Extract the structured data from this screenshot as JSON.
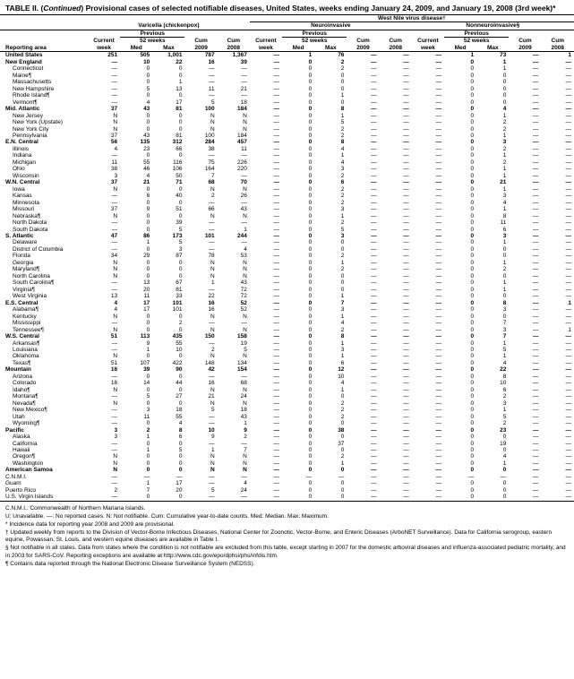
{
  "title_prefix": "TABLE II. (",
  "title_emph": "Continued",
  "title_rest": ") Provisional cases of selected notifiable diseases, United States, weeks ending January 24, 2009, and January 19, 2008 (3rd week)*",
  "super_header": "West Nile virus disease†",
  "diseases": {
    "a": "Varicella (chickenpox)",
    "b": "Neuroinvasive",
    "c": "Nonneuroinvasive§"
  },
  "subheaders": {
    "reporting": "Reporting area",
    "current": "Current",
    "week": "week",
    "previous": "Previous",
    "weeks52": "52 weeks",
    "med": "Med",
    "max": "Max",
    "cum": "Cum",
    "y2009": "2009",
    "y2008": "2008"
  },
  "dash": "—",
  "rows": [
    {
      "l": "United States",
      "b": 1,
      "v": [
        "251",
        "505",
        "1,001",
        "787",
        "1,367",
        "—",
        "1",
        "76",
        "—",
        "—",
        "—",
        "1",
        "73",
        "—",
        "1"
      ]
    },
    {
      "l": "New England",
      "b": 1,
      "v": [
        "—",
        "10",
        "22",
        "16",
        "39",
        "—",
        "0",
        "2",
        "—",
        "—",
        "—",
        "0",
        "1",
        "—",
        "—"
      ]
    },
    {
      "l": "Connecticut",
      "i": 1,
      "v": [
        "—",
        "0",
        "0",
        "—",
        "—",
        "—",
        "0",
        "2",
        "—",
        "—",
        "—",
        "0",
        "1",
        "—",
        "—"
      ]
    },
    {
      "l": "Maine¶",
      "i": 1,
      "v": [
        "—",
        "0",
        "0",
        "—",
        "—",
        "—",
        "0",
        "0",
        "—",
        "—",
        "—",
        "0",
        "0",
        "—",
        "—"
      ]
    },
    {
      "l": "Massachusetts",
      "i": 1,
      "v": [
        "—",
        "0",
        "1",
        "—",
        "—",
        "—",
        "0",
        "0",
        "—",
        "—",
        "—",
        "0",
        "0",
        "—",
        "—"
      ]
    },
    {
      "l": "New Hampshire",
      "i": 1,
      "v": [
        "—",
        "5",
        "13",
        "11",
        "21",
        "—",
        "0",
        "0",
        "—",
        "—",
        "—",
        "0",
        "0",
        "—",
        "—"
      ]
    },
    {
      "l": "Rhode Island¶",
      "i": 1,
      "v": [
        "—",
        "0",
        "0",
        "—",
        "—",
        "—",
        "0",
        "1",
        "—",
        "—",
        "—",
        "0",
        "0",
        "—",
        "—"
      ]
    },
    {
      "l": "Vermont¶",
      "i": 1,
      "v": [
        "—",
        "4",
        "17",
        "5",
        "18",
        "—",
        "0",
        "0",
        "—",
        "—",
        "—",
        "0",
        "0",
        "—",
        "—"
      ]
    },
    {
      "l": "Mid. Atlantic",
      "b": 1,
      "v": [
        "37",
        "43",
        "81",
        "100",
        "184",
        "—",
        "0",
        "8",
        "—",
        "—",
        "—",
        "0",
        "4",
        "—",
        "—"
      ]
    },
    {
      "l": "New Jersey",
      "i": 1,
      "v": [
        "N",
        "0",
        "0",
        "N",
        "N",
        "—",
        "0",
        "1",
        "—",
        "—",
        "—",
        "0",
        "1",
        "—",
        "—"
      ]
    },
    {
      "l": "New York (Upstate)",
      "i": 1,
      "v": [
        "N",
        "0",
        "0",
        "N",
        "N",
        "—",
        "0",
        "5",
        "—",
        "—",
        "—",
        "0",
        "2",
        "—",
        "—"
      ]
    },
    {
      "l": "New York City",
      "i": 1,
      "v": [
        "N",
        "0",
        "0",
        "N",
        "N",
        "—",
        "0",
        "2",
        "—",
        "—",
        "—",
        "0",
        "2",
        "—",
        "—"
      ]
    },
    {
      "l": "Pennsylvania",
      "i": 1,
      "v": [
        "37",
        "43",
        "81",
        "100",
        "184",
        "—",
        "0",
        "2",
        "—",
        "—",
        "—",
        "0",
        "1",
        "—",
        "—"
      ]
    },
    {
      "l": "E.N. Central",
      "b": 1,
      "v": [
        "56",
        "135",
        "312",
        "284",
        "457",
        "—",
        "0",
        "8",
        "—",
        "—",
        "—",
        "0",
        "3",
        "—",
        "—"
      ]
    },
    {
      "l": "Illinois",
      "i": 1,
      "v": [
        "4",
        "23",
        "66",
        "38",
        "11",
        "—",
        "0",
        "4",
        "—",
        "—",
        "—",
        "0",
        "2",
        "—",
        "—"
      ]
    },
    {
      "l": "Indiana",
      "i": 1,
      "v": [
        "—",
        "0",
        "0",
        "—",
        "—",
        "—",
        "0",
        "1",
        "—",
        "—",
        "—",
        "0",
        "1",
        "—",
        "—"
      ]
    },
    {
      "l": "Michigan",
      "i": 1,
      "v": [
        "11",
        "55",
        "116",
        "75",
        "226",
        "—",
        "0",
        "4",
        "—",
        "—",
        "—",
        "0",
        "2",
        "—",
        "—"
      ]
    },
    {
      "l": "Ohio",
      "i": 1,
      "v": [
        "38",
        "46",
        "106",
        "164",
        "220",
        "—",
        "0",
        "3",
        "—",
        "—",
        "—",
        "0",
        "1",
        "—",
        "—"
      ]
    },
    {
      "l": "Wisconsin",
      "i": 1,
      "v": [
        "3",
        "4",
        "50",
        "7",
        "—",
        "—",
        "0",
        "2",
        "—",
        "—",
        "—",
        "0",
        "1",
        "—",
        "—"
      ]
    },
    {
      "l": "W.N. Central",
      "b": 1,
      "v": [
        "37",
        "21",
        "71",
        "68",
        "70",
        "—",
        "0",
        "6",
        "—",
        "—",
        "—",
        "0",
        "21",
        "—",
        "—"
      ]
    },
    {
      "l": "Iowa",
      "i": 1,
      "v": [
        "N",
        "0",
        "0",
        "N",
        "N",
        "—",
        "0",
        "2",
        "—",
        "—",
        "—",
        "0",
        "1",
        "—",
        "—"
      ]
    },
    {
      "l": "Kansas",
      "i": 1,
      "v": [
        "—",
        "6",
        "40",
        "2",
        "26",
        "—",
        "0",
        "2",
        "—",
        "—",
        "—",
        "0",
        "3",
        "—",
        "—"
      ]
    },
    {
      "l": "Minnesota",
      "i": 1,
      "v": [
        "—",
        "0",
        "0",
        "—",
        "—",
        "—",
        "0",
        "2",
        "—",
        "—",
        "—",
        "0",
        "4",
        "—",
        "—"
      ]
    },
    {
      "l": "Missouri",
      "i": 1,
      "v": [
        "37",
        "9",
        "51",
        "66",
        "43",
        "—",
        "0",
        "3",
        "—",
        "—",
        "—",
        "0",
        "1",
        "—",
        "—"
      ]
    },
    {
      "l": "Nebraska¶",
      "i": 1,
      "v": [
        "N",
        "0",
        "0",
        "N",
        "N",
        "—",
        "0",
        "1",
        "—",
        "—",
        "—",
        "0",
        "8",
        "—",
        "—"
      ]
    },
    {
      "l": "North Dakota",
      "i": 1,
      "v": [
        "—",
        "0",
        "39",
        "—",
        "—",
        "—",
        "0",
        "2",
        "—",
        "—",
        "—",
        "0",
        "11",
        "—",
        "—"
      ]
    },
    {
      "l": "South Dakota",
      "i": 1,
      "v": [
        "—",
        "0",
        "5",
        "—",
        "1",
        "—",
        "0",
        "5",
        "—",
        "—",
        "—",
        "0",
        "6",
        "—",
        "—"
      ]
    },
    {
      "l": "S. Atlantic",
      "b": 1,
      "v": [
        "47",
        "86",
        "173",
        "101",
        "244",
        "—",
        "0",
        "3",
        "—",
        "—",
        "—",
        "0",
        "3",
        "—",
        "—"
      ]
    },
    {
      "l": "Delaware",
      "i": 1,
      "v": [
        "—",
        "1",
        "5",
        "—",
        "—",
        "—",
        "0",
        "0",
        "—",
        "—",
        "—",
        "0",
        "1",
        "—",
        "—"
      ]
    },
    {
      "l": "District of Columbia",
      "i": 1,
      "v": [
        "—",
        "0",
        "3",
        "—",
        "4",
        "—",
        "0",
        "0",
        "—",
        "—",
        "—",
        "0",
        "0",
        "—",
        "—"
      ]
    },
    {
      "l": "Florida",
      "i": 1,
      "v": [
        "34",
        "29",
        "87",
        "78",
        "53",
        "—",
        "0",
        "2",
        "—",
        "—",
        "—",
        "0",
        "0",
        "—",
        "—"
      ]
    },
    {
      "l": "Georgia",
      "i": 1,
      "v": [
        "N",
        "0",
        "0",
        "N",
        "N",
        "—",
        "0",
        "1",
        "—",
        "—",
        "—",
        "0",
        "1",
        "—",
        "—"
      ]
    },
    {
      "l": "Maryland¶",
      "i": 1,
      "v": [
        "N",
        "0",
        "0",
        "N",
        "N",
        "—",
        "0",
        "2",
        "—",
        "—",
        "—",
        "0",
        "2",
        "—",
        "—"
      ]
    },
    {
      "l": "North Carolina",
      "i": 1,
      "v": [
        "N",
        "0",
        "0",
        "N",
        "N",
        "—",
        "0",
        "0",
        "—",
        "—",
        "—",
        "0",
        "0",
        "—",
        "—"
      ]
    },
    {
      "l": "South Carolina¶",
      "i": 1,
      "v": [
        "—",
        "13",
        "67",
        "1",
        "43",
        "—",
        "0",
        "0",
        "—",
        "—",
        "—",
        "0",
        "1",
        "—",
        "—"
      ]
    },
    {
      "l": "Virginia¶",
      "i": 1,
      "v": [
        "—",
        "20",
        "81",
        "—",
        "72",
        "—",
        "0",
        "0",
        "—",
        "—",
        "—",
        "0",
        "1",
        "—",
        "—"
      ]
    },
    {
      "l": "West Virginia",
      "i": 1,
      "v": [
        "13",
        "11",
        "33",
        "22",
        "72",
        "—",
        "0",
        "1",
        "—",
        "—",
        "—",
        "0",
        "0",
        "—",
        "—"
      ]
    },
    {
      "l": "E.S. Central",
      "b": 1,
      "v": [
        "4",
        "17",
        "101",
        "16",
        "52",
        "—",
        "0",
        "7",
        "—",
        "—",
        "—",
        "0",
        "8",
        "—",
        "1"
      ]
    },
    {
      "l": "Alabama¶",
      "i": 1,
      "v": [
        "4",
        "17",
        "101",
        "16",
        "52",
        "—",
        "0",
        "3",
        "—",
        "—",
        "—",
        "0",
        "3",
        "—",
        "—"
      ]
    },
    {
      "l": "Kentucky",
      "i": 1,
      "v": [
        "N",
        "0",
        "0",
        "N",
        "N",
        "—",
        "0",
        "1",
        "—",
        "—",
        "—",
        "0",
        "0",
        "—",
        "—"
      ]
    },
    {
      "l": "Mississippi",
      "i": 1,
      "v": [
        "—",
        "0",
        "2",
        "—",
        "—",
        "—",
        "0",
        "4",
        "—",
        "—",
        "—",
        "0",
        "7",
        "—",
        "—"
      ]
    },
    {
      "l": "Tennessee¶",
      "i": 1,
      "v": [
        "N",
        "0",
        "0",
        "N",
        "N",
        "—",
        "0",
        "2",
        "—",
        "—",
        "—",
        "0",
        "3",
        "—",
        "1"
      ]
    },
    {
      "l": "W.S. Central",
      "b": 1,
      "v": [
        "51",
        "113",
        "435",
        "150",
        "158",
        "—",
        "0",
        "8",
        "—",
        "—",
        "—",
        "0",
        "7",
        "—",
        "—"
      ]
    },
    {
      "l": "Arkansas¶",
      "i": 1,
      "v": [
        "—",
        "9",
        "55",
        "—",
        "19",
        "—",
        "0",
        "1",
        "—",
        "—",
        "—",
        "0",
        "1",
        "—",
        "—"
      ]
    },
    {
      "l": "Louisiana",
      "i": 1,
      "v": [
        "—",
        "1",
        "10",
        "2",
        "5",
        "—",
        "0",
        "3",
        "—",
        "—",
        "—",
        "0",
        "5",
        "—",
        "—"
      ]
    },
    {
      "l": "Oklahoma",
      "i": 1,
      "v": [
        "N",
        "0",
        "0",
        "N",
        "N",
        "—",
        "0",
        "1",
        "—",
        "—",
        "—",
        "0",
        "1",
        "—",
        "—"
      ]
    },
    {
      "l": "Texas¶",
      "i": 1,
      "v": [
        "51",
        "107",
        "422",
        "148",
        "134",
        "—",
        "0",
        "6",
        "—",
        "—",
        "—",
        "0",
        "4",
        "—",
        "—"
      ]
    },
    {
      "l": "Mountain",
      "b": 1,
      "v": [
        "16",
        "39",
        "90",
        "42",
        "154",
        "—",
        "0",
        "12",
        "—",
        "—",
        "—",
        "0",
        "22",
        "—",
        "—"
      ]
    },
    {
      "l": "Arizona",
      "i": 1,
      "v": [
        "—",
        "0",
        "0",
        "—",
        "—",
        "—",
        "0",
        "10",
        "—",
        "—",
        "—",
        "0",
        "8",
        "—",
        "—"
      ]
    },
    {
      "l": "Colorado",
      "i": 1,
      "v": [
        "16",
        "14",
        "44",
        "16",
        "68",
        "—",
        "0",
        "4",
        "—",
        "—",
        "—",
        "0",
        "10",
        "—",
        "—"
      ]
    },
    {
      "l": "Idaho¶",
      "i": 1,
      "v": [
        "N",
        "0",
        "0",
        "N",
        "N",
        "—",
        "0",
        "1",
        "—",
        "—",
        "—",
        "0",
        "6",
        "—",
        "—"
      ]
    },
    {
      "l": "Montana¶",
      "i": 1,
      "v": [
        "—",
        "5",
        "27",
        "21",
        "24",
        "—",
        "0",
        "0",
        "—",
        "—",
        "—",
        "0",
        "2",
        "—",
        "—"
      ]
    },
    {
      "l": "Nevada¶",
      "i": 1,
      "v": [
        "N",
        "0",
        "0",
        "N",
        "N",
        "—",
        "0",
        "2",
        "—",
        "—",
        "—",
        "0",
        "3",
        "—",
        "—"
      ]
    },
    {
      "l": "New Mexico¶",
      "i": 1,
      "v": [
        "—",
        "3",
        "18",
        "5",
        "18",
        "—",
        "0",
        "2",
        "—",
        "—",
        "—",
        "0",
        "1",
        "—",
        "—"
      ]
    },
    {
      "l": "Utah",
      "i": 1,
      "v": [
        "—",
        "11",
        "55",
        "—",
        "43",
        "—",
        "0",
        "2",
        "—",
        "—",
        "—",
        "0",
        "5",
        "—",
        "—"
      ]
    },
    {
      "l": "Wyoming¶",
      "i": 1,
      "v": [
        "—",
        "0",
        "4",
        "—",
        "1",
        "—",
        "0",
        "0",
        "—",
        "—",
        "—",
        "0",
        "2",
        "—",
        "—"
      ]
    },
    {
      "l": "Pacific",
      "b": 1,
      "v": [
        "3",
        "2",
        "8",
        "10",
        "9",
        "—",
        "0",
        "38",
        "—",
        "—",
        "—",
        "0",
        "23",
        "—",
        "—"
      ]
    },
    {
      "l": "Alaska",
      "i": 1,
      "v": [
        "3",
        "1",
        "6",
        "9",
        "2",
        "—",
        "0",
        "0",
        "—",
        "—",
        "—",
        "0",
        "0",
        "—",
        "—"
      ]
    },
    {
      "l": "California",
      "i": 1,
      "v": [
        "—",
        "0",
        "0",
        "—",
        "—",
        "—",
        "0",
        "37",
        "—",
        "—",
        "—",
        "0",
        "19",
        "—",
        "—"
      ]
    },
    {
      "l": "Hawaii",
      "i": 1,
      "v": [
        "—",
        "1",
        "5",
        "1",
        "7",
        "—",
        "0",
        "0",
        "—",
        "—",
        "—",
        "0",
        "0",
        "—",
        "—"
      ]
    },
    {
      "l": "Oregon¶",
      "i": 1,
      "v": [
        "N",
        "0",
        "0",
        "N",
        "N",
        "—",
        "0",
        "2",
        "—",
        "—",
        "—",
        "0",
        "4",
        "—",
        "—"
      ]
    },
    {
      "l": "Washington",
      "i": 1,
      "v": [
        "N",
        "0",
        "0",
        "N",
        "N",
        "—",
        "0",
        "1",
        "—",
        "—",
        "—",
        "0",
        "1",
        "—",
        "—"
      ]
    },
    {
      "l": "American Samoa",
      "b": 1,
      "v": [
        "N",
        "0",
        "0",
        "N",
        "N",
        "—",
        "0",
        "0",
        "—",
        "—",
        "—",
        "0",
        "0",
        "—",
        "—"
      ]
    },
    {
      "l": "C.N.M.I.",
      "i": 0,
      "v": [
        "—",
        "—",
        "—",
        "—",
        "—",
        "—",
        "—",
        "—",
        "—",
        "—",
        "—",
        "—",
        "—",
        "—",
        "—"
      ]
    },
    {
      "l": "Guam",
      "i": 0,
      "v": [
        "—",
        "1",
        "17",
        "—",
        "4",
        "—",
        "0",
        "0",
        "—",
        "—",
        "—",
        "0",
        "0",
        "—",
        "—"
      ]
    },
    {
      "l": "Puerto Rico",
      "i": 0,
      "v": [
        "2",
        "7",
        "20",
        "5",
        "24",
        "—",
        "0",
        "0",
        "—",
        "—",
        "—",
        "0",
        "0",
        "—",
        "—"
      ]
    },
    {
      "l": "U.S. Virgin Islands",
      "i": 0,
      "v": [
        "—",
        "0",
        "0",
        "—",
        "—",
        "—",
        "0",
        "0",
        "—",
        "—",
        "—",
        "0",
        "0",
        "—",
        "—"
      ]
    }
  ],
  "footnotes": [
    "C.N.M.I.: Commonwealth of Northern Mariana Islands.",
    "U: Unavailable.   —: No reported cases.   N: Not notifiable.   Cum: Cumulative year-to-date counts.   Med: Median.   Max: Maximum.",
    "* Incidence data for reporting year 2008 and 2009 are provisional.",
    "† Updated weekly from reports to the Division of Vector-Borne Infectious Diseases, National Center for Zoonotic, Vector-Borne, and Enteric Diseases (ArboNET Surveillance). Data for California serogroup, eastern equine, Powassan, St. Louis, and western equine diseases are available in Table I.",
    "§ Not notifiable in all states. Data from states where the condition is not notifiable are excluded from this table, except starting in 2007 for the domestic arboviral diseases and influenza-associated pediatric mortality, and in 2003 for SARS-CoV. Reporting exceptions are available at http://www.cdc.gov/epo/dphsi/phs/infdis.htm.",
    "¶ Contains data reported through the National Electronic Disease Surveillance System (NEDSS)."
  ],
  "colors": {
    "bg": "#ffffff",
    "fg": "#000000"
  }
}
